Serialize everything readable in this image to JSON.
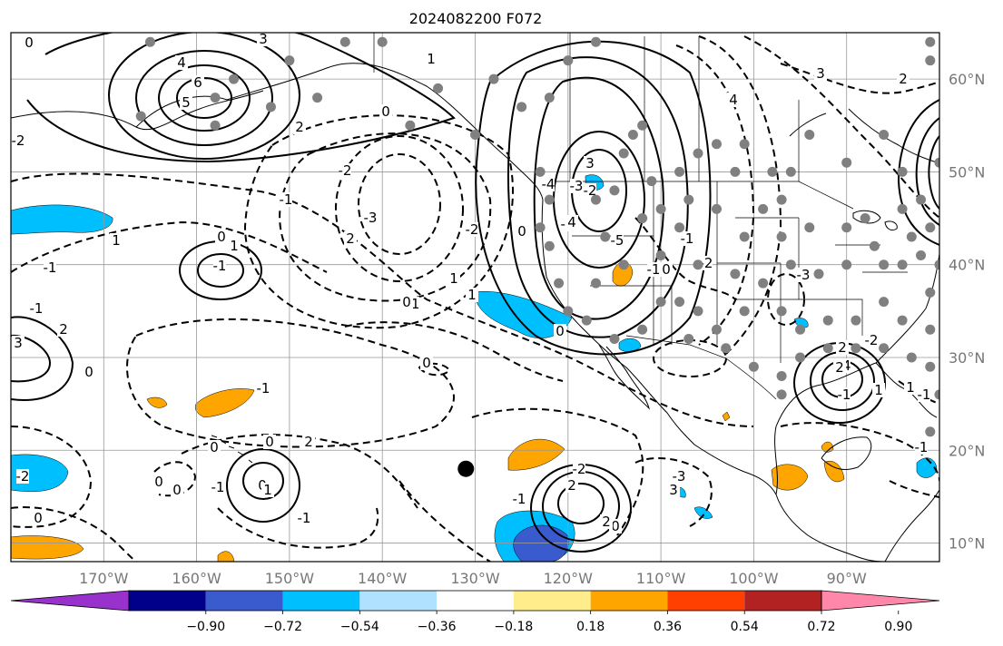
{
  "title": "2024082200 F072",
  "map": {
    "lon_range": [
      -180,
      -80
    ],
    "lat_range": [
      8,
      65
    ],
    "lon_ticks": [
      {
        "lon": -170,
        "label": "170°W"
      },
      {
        "lon": -160,
        "label": "160°W"
      },
      {
        "lon": -150,
        "label": "150°W"
      },
      {
        "lon": -140,
        "label": "140°W"
      },
      {
        "lon": -130,
        "label": "130°W"
      },
      {
        "lon": -120,
        "label": "120°W"
      },
      {
        "lon": -110,
        "label": "110°W"
      },
      {
        "lon": -100,
        "label": "100°W"
      },
      {
        "lon": -90,
        "label": "90°W"
      }
    ],
    "lat_ticks": [
      {
        "lat": 60,
        "label": "60°N"
      },
      {
        "lat": 50,
        "label": "50°N"
      },
      {
        "lat": 40,
        "label": "40°N"
      },
      {
        "lat": 30,
        "label": "30°N"
      },
      {
        "lat": 20,
        "label": "20°N"
      },
      {
        "lat": 10,
        "label": "10°N"
      }
    ],
    "grid": true,
    "marker": {
      "lon": -131,
      "lat": 18
    },
    "stations": [
      [
        -165,
        64
      ],
      [
        -156,
        60
      ],
      [
        -150,
        62
      ],
      [
        -144,
        64
      ],
      [
        -140,
        64
      ],
      [
        -134,
        59
      ],
      [
        -128,
        60
      ],
      [
        -122,
        58
      ],
      [
        -117,
        64
      ],
      [
        -158,
        58
      ],
      [
        -152,
        57
      ],
      [
        -147,
        58
      ],
      [
        -158,
        55
      ],
      [
        -166,
        56
      ],
      [
        -137,
        55
      ],
      [
        -130,
        54
      ],
      [
        -125,
        57
      ],
      [
        -120,
        62
      ],
      [
        -123,
        50
      ],
      [
        -122,
        47
      ],
      [
        -123,
        44
      ],
      [
        -122,
        42
      ],
      [
        -121,
        38
      ],
      [
        -120,
        35
      ],
      [
        -117,
        47
      ],
      [
        -116,
        43
      ],
      [
        -115,
        48
      ],
      [
        -114,
        52
      ],
      [
        -113,
        54
      ],
      [
        -112,
        55
      ],
      [
        -111,
        49
      ],
      [
        -112,
        45
      ],
      [
        -110,
        46
      ],
      [
        -108,
        50
      ],
      [
        -107,
        47
      ],
      [
        -106,
        52
      ],
      [
        -104,
        53
      ],
      [
        -102,
        50
      ],
      [
        -101,
        53
      ],
      [
        -98,
        50
      ],
      [
        -96,
        50
      ],
      [
        -94,
        54
      ],
      [
        -90,
        51
      ],
      [
        -86,
        54
      ],
      [
        -97,
        47
      ],
      [
        -99,
        46
      ],
      [
        -104,
        46
      ],
      [
        -101,
        43
      ],
      [
        -97,
        43
      ],
      [
        -94,
        44
      ],
      [
        -90,
        44
      ],
      [
        -88,
        45
      ],
      [
        -84,
        46
      ],
      [
        -83,
        43
      ],
      [
        -86,
        40
      ],
      [
        -90,
        40
      ],
      [
        -93,
        39
      ],
      [
        -96,
        40
      ],
      [
        -99,
        38
      ],
      [
        -102,
        39
      ],
      [
        -106,
        40
      ],
      [
        -108,
        44
      ],
      [
        -110,
        41
      ],
      [
        -114,
        40
      ],
      [
        -117,
        38
      ],
      [
        -118,
        34
      ],
      [
        -115,
        32
      ],
      [
        -112,
        33
      ],
      [
        -107,
        32
      ],
      [
        -104,
        33
      ],
      [
        -101,
        35
      ],
      [
        -97,
        35
      ],
      [
        -95,
        33
      ],
      [
        -92,
        34
      ],
      [
        -89,
        34
      ],
      [
        -86,
        36
      ],
      [
        -84,
        34
      ],
      [
        -81,
        33
      ],
      [
        -81,
        29
      ],
      [
        -83,
        30
      ],
      [
        -86,
        31
      ],
      [
        -89,
        31
      ],
      [
        -92,
        31
      ],
      [
        -95,
        30
      ],
      [
        -97,
        28
      ],
      [
        -97,
        26
      ],
      [
        -100,
        29
      ],
      [
        -103,
        31
      ],
      [
        -106,
        35
      ],
      [
        -108,
        36
      ],
      [
        -110,
        36
      ],
      [
        -80,
        26
      ],
      [
        -81,
        37
      ],
      [
        -80,
        40
      ],
      [
        -82,
        41
      ],
      [
        -84,
        40
      ],
      [
        -87,
        42
      ],
      [
        -81,
        44
      ],
      [
        -82,
        47
      ],
      [
        -84,
        50
      ],
      [
        -80,
        51
      ],
      [
        -79,
        43
      ],
      [
        -81,
        22
      ],
      [
        -81,
        64
      ],
      [
        -81,
        62
      ]
    ]
  },
  "colorbar": {
    "colors": [
      "#9932cc",
      "#00008b",
      "#3a5bcd",
      "#00bfff",
      "#b0e2ff",
      "#ffffff",
      "#ffec8b",
      "#ffa500",
      "#ff4000",
      "#b22222",
      "#ff88aa"
    ],
    "tick_labels": [
      "−0.90",
      "−0.72",
      "−0.54",
      "−0.36",
      "−0.18",
      "0.18",
      "0.36",
      "0.54",
      "0.72",
      "0.90"
    ]
  },
  "contour_labels": [
    "0",
    "3",
    "4",
    "5",
    "6",
    "2",
    "1",
    "0",
    "-2",
    "-1",
    "0",
    "1",
    "-1",
    "2",
    "3",
    "0",
    "1",
    "-1",
    "2",
    "0",
    "-1",
    "-2",
    "-3",
    "-2",
    "-1",
    "-1",
    "-2",
    "-3",
    "-4",
    "-5",
    "4",
    "3",
    "3",
    "4",
    "2",
    "-1",
    "-3",
    "-2",
    "0",
    "-1",
    "0",
    "-2",
    "0",
    "0",
    "0",
    "2",
    "-1",
    "0",
    "0",
    "-1",
    "1",
    "2",
    "0",
    "0",
    "-3",
    "3",
    "-4",
    "2",
    "-2",
    "-1",
    "1",
    "-1",
    "-1",
    "2",
    "1",
    "-3",
    "0",
    "-2",
    "-1",
    "2",
    "1",
    "0",
    "0",
    "1"
  ]
}
